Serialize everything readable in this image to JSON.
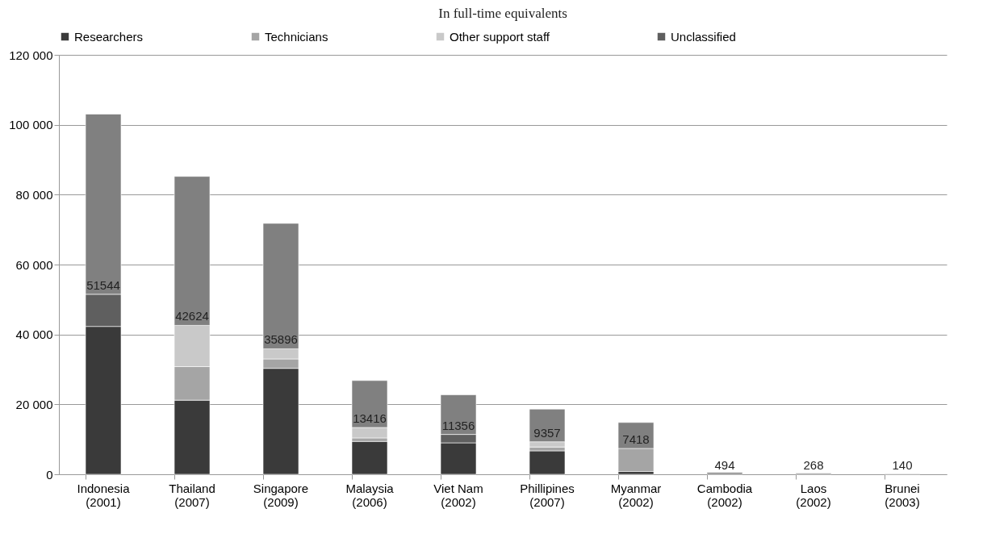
{
  "chart_data": {
    "type": "bar",
    "stacked": true,
    "title": "In full-time equivalents",
    "categories": [
      "Indonesia (2001)",
      "Thailand (2007)",
      "Singapore (2009)",
      "Malaysia (2006)",
      "Viet Nam (2002)",
      "Phillipines (2007)",
      "Myanmar (2002)",
      "Cambodia (2002)",
      "Laos (2002)",
      "Brunei (2003)"
    ],
    "series": [
      {
        "name": "Researchers",
        "color": "#3a3a3a",
        "values": [
          42300,
          21200,
          30300,
          9400,
          9000,
          6700,
          800,
          null,
          null,
          null
        ]
      },
      {
        "name": "Technicians",
        "color": "#a5a5a5",
        "values": [
          null,
          9600,
          2700,
          1000,
          null,
          1100,
          6600,
          null,
          null,
          null
        ]
      },
      {
        "name": "Other support staff",
        "color": "#c9c9c9",
        "values": [
          null,
          11800,
          2900,
          3000,
          null,
          1500,
          null,
          null,
          null,
          null
        ]
      },
      {
        "name": "Unclassified",
        "color": "#5f5f5f",
        "values": [
          9200,
          null,
          null,
          null,
          2400,
          null,
          null,
          null,
          null,
          null
        ]
      },
      {
        "color": "#808080",
        "values": [
          51544,
          42624,
          35896,
          13416,
          11356,
          9357,
          7418,
          494,
          268,
          140
        ],
        "value_labels": [
          "51544",
          "42624",
          "35896",
          "13416",
          "11356",
          "9357",
          "7418",
          "494",
          "268",
          "140"
        ]
      }
    ],
    "ylim": [
      0,
      120000
    ],
    "yticks": [
      0,
      {
        "value": 20000,
        "label": "20 000"
      },
      {
        "value": 40000,
        "label": "40 000"
      },
      {
        "value": 60000,
        "label": "60 000"
      },
      {
        "value": 80000,
        "label": "80 000"
      },
      {
        "value": 100000,
        "label": "100 000"
      },
      {
        "value": 120000,
        "label": "120 000"
      }
    ],
    "grid": "y",
    "legend": "top"
  }
}
